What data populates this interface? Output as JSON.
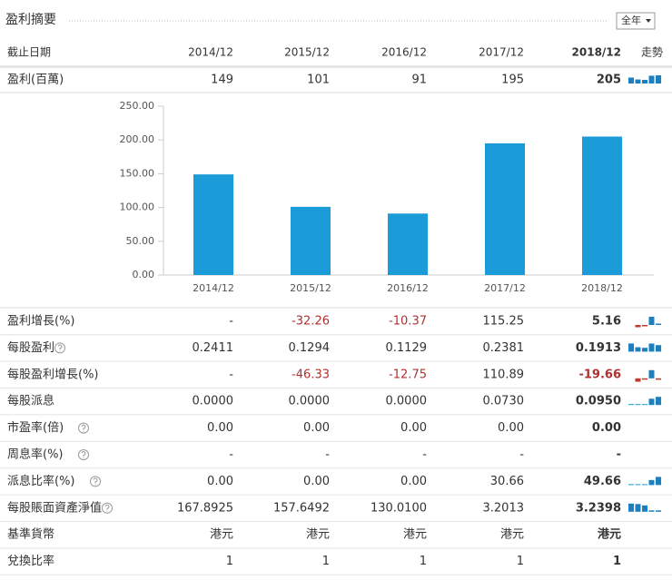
{
  "header": {
    "title": "盈利摘要",
    "selector": "全年"
  },
  "table": {
    "columns": [
      "截止日期",
      "2014/12",
      "2015/12",
      "2016/12",
      "2017/12",
      "2018/12",
      "走勢"
    ],
    "profit_row": {
      "label": "盈利(百萬)",
      "cells": [
        "149",
        "101",
        "91",
        "195",
        "205"
      ],
      "trend": true
    },
    "rows": [
      {
        "label": "盈利增長(%)",
        "help": false,
        "trend": true,
        "cells": [
          "-",
          "-32.26",
          "-10.37",
          "115.25",
          "5.16"
        ]
      },
      {
        "label": "每股盈利",
        "help": true,
        "trend": true,
        "cells": [
          "0.2411",
          "0.1294",
          "0.1129",
          "0.2381",
          "0.1913"
        ]
      },
      {
        "label": "每股盈利增長(%)",
        "help": false,
        "trend": true,
        "cells": [
          "-",
          "-46.33",
          "-12.75",
          "110.89",
          "-19.66"
        ]
      },
      {
        "label": "每股派息",
        "help": false,
        "trend": true,
        "cells": [
          "0.0000",
          "0.0000",
          "0.0000",
          "0.0730",
          "0.0950"
        ]
      },
      {
        "label": "市盈率(倍)",
        "help": true,
        "trend": false,
        "cells": [
          "0.00",
          "0.00",
          "0.00",
          "0.00",
          "0.00"
        ]
      },
      {
        "label": "周息率(%)",
        "help": true,
        "trend": false,
        "cells": [
          "-",
          "-",
          "-",
          "-",
          "-"
        ]
      },
      {
        "label": "派息比率(%)",
        "help": true,
        "trend": true,
        "cells": [
          "0.00",
          "0.00",
          "0.00",
          "30.66",
          "49.66"
        ]
      },
      {
        "label": "每股賬面資產淨值",
        "help": true,
        "trend": true,
        "cells": [
          "167.8925",
          "157.6492",
          "130.0100",
          "3.2013",
          "3.2398"
        ]
      },
      {
        "label": "基準貨幣",
        "help": false,
        "trend": false,
        "cells": [
          "港元",
          "港元",
          "港元",
          "港元",
          "港元"
        ]
      },
      {
        "label": "兌換比率",
        "help": false,
        "trend": false,
        "cells": [
          "1",
          "1",
          "1",
          "1",
          "1"
        ]
      }
    ]
  },
  "chart_data": {
    "type": "bar",
    "categories": [
      "2014/12",
      "2015/12",
      "2016/12",
      "2017/12",
      "2018/12"
    ],
    "values": [
      149,
      101,
      91,
      195,
      205
    ],
    "color": "#1b9bd7",
    "ylim": [
      0,
      250
    ],
    "yticks": [
      {
        "value": 0,
        "label": "0.00"
      },
      {
        "value": 50,
        "label": "50.00"
      },
      {
        "value": 100,
        "label": "100.00"
      },
      {
        "value": 150,
        "label": "150.00"
      },
      {
        "value": 200,
        "label": "200.00"
      },
      {
        "value": 250,
        "label": "250.00"
      }
    ]
  }
}
